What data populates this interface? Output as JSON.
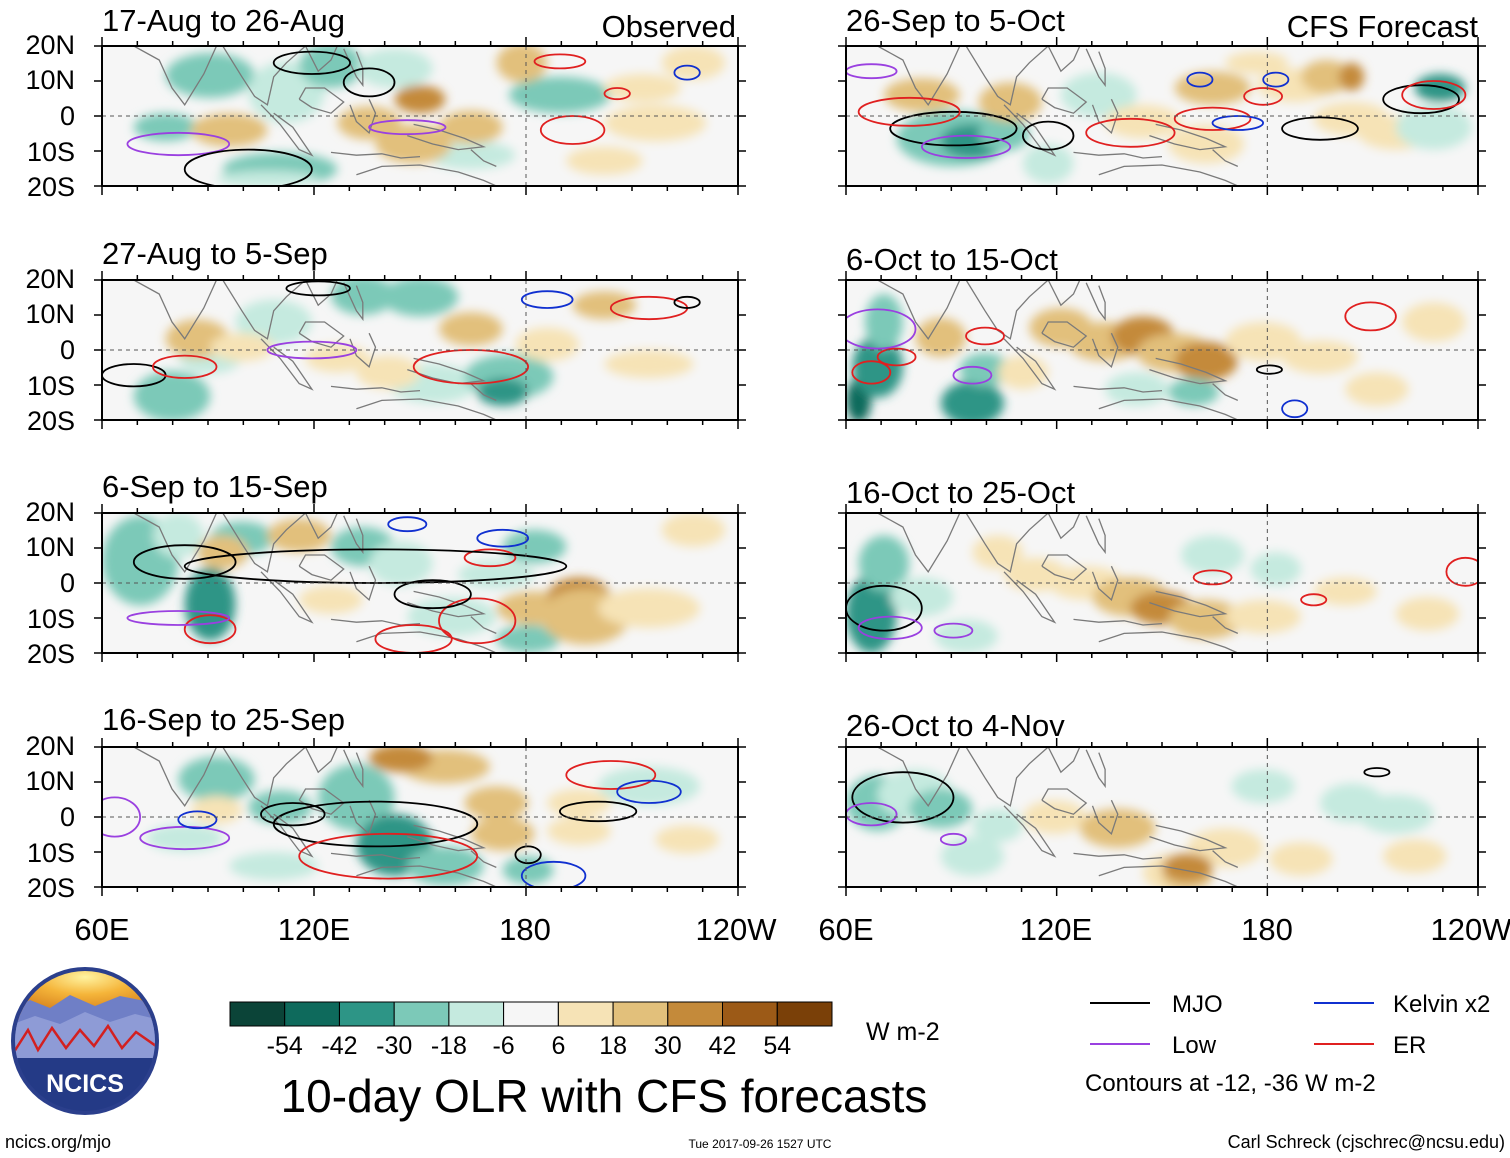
{
  "figure": {
    "title": "10-day OLR with CFS forecasts",
    "observed_label": "Observed",
    "forecast_label": "CFS Forecast",
    "lat_ticks": [
      "20N",
      "10N",
      "0",
      "10S",
      "20S"
    ],
    "lon_ticks": [
      "60E",
      "120E",
      "180",
      "120W"
    ],
    "panels_observed": [
      {
        "period": "17-Aug to 26-Aug"
      },
      {
        "period": "27-Aug to 5-Sep"
      },
      {
        "period": "6-Sep to 15-Sep"
      },
      {
        "period": "16-Sep to 25-Sep"
      }
    ],
    "panels_forecast": [
      {
        "period": "26-Sep to 5-Oct"
      },
      {
        "period": "6-Oct to 15-Oct"
      },
      {
        "period": "16-Oct to 25-Oct"
      },
      {
        "period": "26-Oct to 4-Nov"
      }
    ]
  },
  "colorbar": {
    "labels": [
      "-54",
      "-42",
      "-30",
      "-18",
      "-6",
      "6",
      "18",
      "30",
      "42",
      "54"
    ],
    "colors": [
      "#0b4438",
      "#0e6a5c",
      "#2d9586",
      "#7cc9b8",
      "#c5eadf",
      "#f6f6f6",
      "#f6e3b6",
      "#e2c07b",
      "#c48a3a",
      "#9c5a17",
      "#7a4008"
    ],
    "units": "W m-2"
  },
  "legend": {
    "items": [
      {
        "label": "MJO",
        "color": "#000000"
      },
      {
        "label": "Kelvin x2",
        "color": "#1030d0"
      },
      {
        "label": "Low",
        "color": "#9a40e0"
      },
      {
        "label": "ER",
        "color": "#e02020"
      }
    ],
    "contour_note": "Contours at -12, -36 W m-2"
  },
  "logo": {
    "text": "NCICS"
  },
  "footer": {
    "url": "ncics.org/mjo",
    "timestamp": "Tue 2017-09-26 1527 UTC",
    "credit": "Carl Schreck (cjschrec@ncsu.edu)"
  }
}
